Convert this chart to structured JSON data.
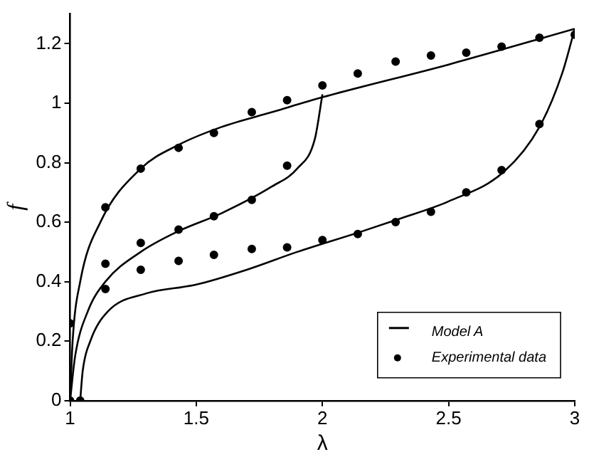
{
  "chart_data": {
    "type": "line",
    "xlabel": "λ",
    "ylabel": "f",
    "xlim": [
      1,
      3
    ],
    "ylim": [
      0,
      1.3
    ],
    "xticks": [
      1,
      1.5,
      2,
      2.5,
      3
    ],
    "yticks": [
      0,
      0.2,
      0.4,
      0.6,
      0.8,
      1,
      1.2
    ],
    "grid": false,
    "legend": "bottom right",
    "marker": "none",
    "line_style": "solid",
    "series": [
      {
        "name": "Model A",
        "color": "#000000",
        "x": [
          1,
          1.01,
          1.04,
          1.12,
          1.28,
          1.43,
          1.6,
          1.8,
          2.0,
          2.5,
          3.0
        ],
        "values": [
          0,
          0.2,
          0.4,
          0.6,
          0.78,
          0.86,
          0.92,
          0.97,
          1.02,
          1.13,
          1.25
        ]
      },
      {
        "color": "#000000",
        "x": [
          1,
          1.02,
          1.07,
          1.14,
          1.28,
          1.43,
          1.6,
          1.8,
          1.9,
          1.97,
          2.0
        ],
        "values": [
          0,
          0.15,
          0.3,
          0.4,
          0.5,
          0.57,
          0.63,
          0.72,
          0.78,
          0.88,
          1.03
        ]
      },
      {
        "color": "#000000",
        "x": [
          1.04,
          1.05,
          1.08,
          1.15,
          1.3,
          1.5,
          1.7,
          1.9,
          2.16,
          2.3,
          2.5,
          2.72,
          2.86,
          2.95,
          3.0
        ],
        "values": [
          0,
          0.1,
          0.2,
          0.3,
          0.36,
          0.39,
          0.44,
          0.5,
          0.57,
          0.61,
          0.67,
          0.77,
          0.92,
          1.1,
          1.25
        ]
      },
      {
        "name": "Experimental data",
        "type": "scatter",
        "color": "#000000",
        "marker": "circle",
        "x": [
          1,
          1.14,
          1.28,
          1.43,
          1.57,
          1.72,
          1.86,
          2.0,
          2.14,
          2.29,
          2.43,
          2.57,
          2.71,
          2.86,
          3.0,
          1,
          1.14,
          1.28,
          1.43,
          1.57,
          1.72,
          1.86,
          1.04,
          1.14,
          1.28,
          1.43,
          1.57,
          1.72,
          1.86,
          2.0,
          2.14,
          2.29,
          2.43,
          2.57,
          2.71,
          2.86
        ],
        "values": [
          0.26,
          0.65,
          0.78,
          0.85,
          0.9,
          0.97,
          1.01,
          1.06,
          1.1,
          1.14,
          1.16,
          1.17,
          1.19,
          1.22,
          1.23,
          0,
          0.46,
          0.53,
          0.575,
          0.62,
          0.675,
          0.79,
          0,
          0.375,
          0.44,
          0.47,
          0.49,
          0.51,
          0.515,
          0.54,
          0.56,
          0.6,
          0.635,
          0.7,
          0.775,
          0.93
        ]
      }
    ]
  }
}
